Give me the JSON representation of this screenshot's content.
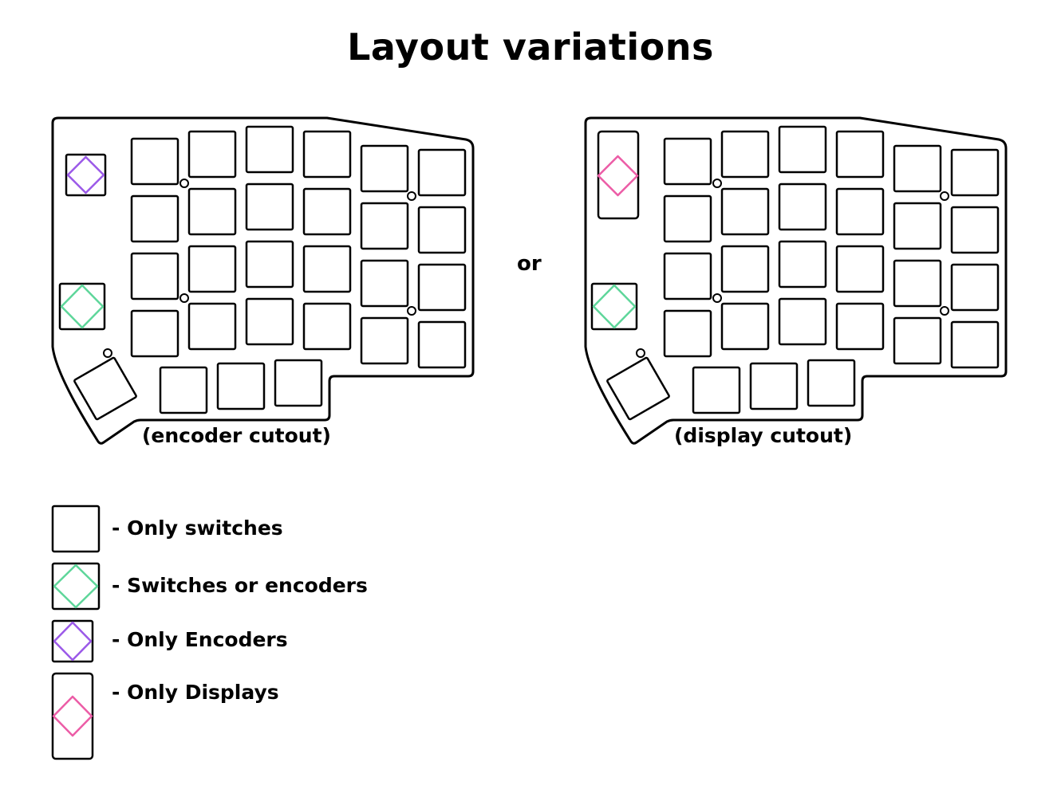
{
  "title": "Layout variations",
  "separator": "or",
  "variants": [
    {
      "caption": "(encoder cutout)",
      "cutout": "encoder"
    },
    {
      "caption": "(display cutout)",
      "cutout": "display"
    }
  ],
  "legend": [
    {
      "label": "- Only switches",
      "type": "switch"
    },
    {
      "label": "- Switches or encoders",
      "type": "switch-or-encoder",
      "color": "#5ed69a"
    },
    {
      "label": "- Only Encoders",
      "type": "encoder",
      "color": "#9b59e8"
    },
    {
      "label": "- Only Displays",
      "type": "display",
      "color": "#ec5ca6"
    }
  ],
  "colors": {
    "switch_or_encoder": "#5ed69a",
    "encoder": "#9b59e8",
    "display": "#ec5ca6",
    "outline": "#000000"
  }
}
